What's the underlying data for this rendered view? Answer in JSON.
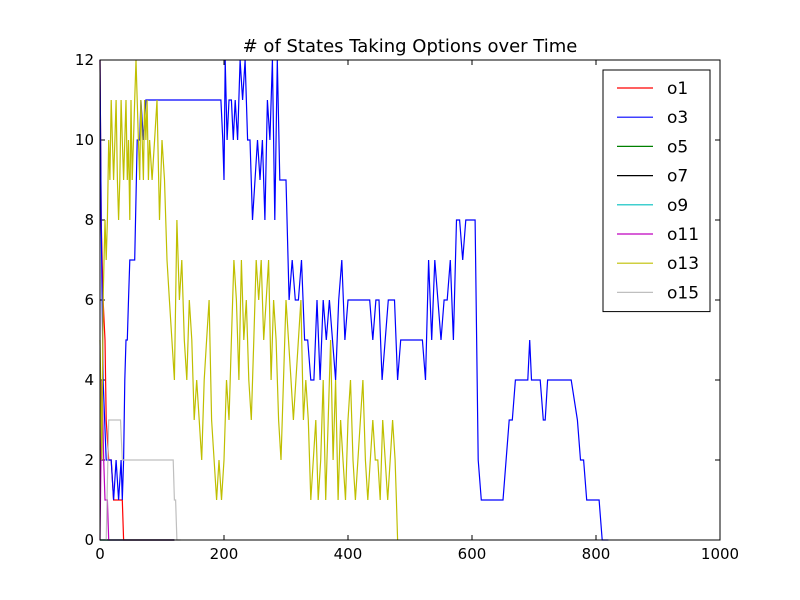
{
  "chart_data": {
    "type": "line",
    "title": "# of States Taking Options over Time",
    "xlabel": "",
    "ylabel": "",
    "xlim": [
      0,
      1000
    ],
    "ylim": [
      0,
      12
    ],
    "xticks": [
      0,
      200,
      400,
      600,
      800,
      1000
    ],
    "yticks": [
      0,
      2,
      4,
      6,
      8,
      10,
      12
    ],
    "grid": false,
    "legend_position": "top-right",
    "series": [
      {
        "name": "o1",
        "color": "#ff0000",
        "x": [
          0,
          2,
          5,
          8,
          10,
          14,
          18,
          22,
          25,
          30,
          36,
          38,
          40,
          60,
          120
        ],
        "y": [
          12,
          8,
          6,
          5,
          3,
          2,
          2,
          1,
          1,
          1,
          1,
          0,
          0,
          0,
          0
        ]
      },
      {
        "name": "o3",
        "color": "#0000ff",
        "x": [
          0,
          2,
          5,
          10,
          14,
          18,
          22,
          26,
          30,
          34,
          36,
          38,
          40,
          42,
          44,
          46,
          48,
          52,
          56,
          60,
          64,
          66,
          70,
          74,
          78,
          80,
          85,
          90,
          100,
          120,
          140,
          160,
          180,
          195,
          198,
          200,
          202,
          205,
          208,
          212,
          215,
          218,
          222,
          226,
          230,
          234,
          238,
          242,
          246,
          250,
          254,
          258,
          262,
          266,
          270,
          274,
          278,
          282,
          286,
          290,
          295,
          300,
          305,
          310,
          315,
          320,
          325,
          330,
          335,
          340,
          345,
          350,
          355,
          360,
          365,
          370,
          375,
          380,
          385,
          390,
          395,
          400,
          405,
          410,
          415,
          420,
          425,
          430,
          435,
          440,
          445,
          450,
          455,
          460,
          465,
          470,
          475,
          480,
          485,
          490,
          495,
          500,
          505,
          510,
          515,
          520,
          525,
          530,
          535,
          540,
          545,
          550,
          555,
          560,
          565,
          570,
          575,
          580,
          585,
          590,
          595,
          600,
          605,
          610,
          615,
          620,
          630,
          640,
          650,
          660,
          665,
          670,
          680,
          690,
          693,
          696,
          700,
          705,
          710,
          715,
          718,
          722,
          726,
          730,
          740,
          750,
          760,
          770,
          775,
          780,
          785,
          790,
          795,
          800,
          805,
          810,
          811,
          820
        ],
        "y": [
          12,
          8,
          4,
          2,
          2,
          2,
          1,
          2,
          1,
          2,
          1,
          2,
          4,
          5,
          5,
          6,
          7,
          7,
          7,
          10,
          10,
          11,
          10,
          11,
          11,
          11,
          11,
          11,
          11,
          11,
          11,
          11,
          11,
          11,
          10,
          9,
          12,
          10,
          11,
          11,
          10,
          11,
          10,
          12,
          11,
          12,
          10,
          10,
          8,
          9,
          10,
          9,
          10,
          8,
          11,
          10,
          12,
          8,
          12,
          9,
          9,
          9,
          6,
          7,
          6,
          6,
          7,
          5,
          5,
          4,
          4,
          6,
          4,
          6,
          5,
          6,
          5,
          4,
          6,
          7,
          5,
          6,
          6,
          6,
          6,
          6,
          6,
          6,
          6,
          5,
          6,
          6,
          4,
          5,
          6,
          6,
          6,
          4,
          5,
          5,
          5,
          5,
          5,
          5,
          5,
          5,
          4,
          7,
          5,
          7,
          6,
          5,
          6,
          6,
          7,
          5,
          8,
          8,
          7,
          8,
          8,
          8,
          8,
          2,
          1,
          1,
          1,
          1,
          1,
          3,
          3,
          4,
          4,
          4,
          5,
          4,
          4,
          4,
          4,
          3,
          3,
          4,
          4,
          4,
          4,
          4,
          4,
          3,
          2,
          2,
          1,
          1,
          1,
          1,
          1,
          0,
          0,
          0
        ]
      },
      {
        "name": "o5",
        "color": "#008000",
        "x": [
          0,
          10,
          120
        ],
        "y": [
          0,
          0,
          0
        ]
      },
      {
        "name": "o7",
        "color": "#000000",
        "x": [
          0,
          10,
          120
        ],
        "y": [
          0,
          0,
          0
        ]
      },
      {
        "name": "o9",
        "color": "#00bfbf",
        "x": [
          0,
          10,
          120
        ],
        "y": [
          0,
          0,
          0
        ]
      },
      {
        "name": "o11",
        "color": "#bf00bf",
        "x": [
          0,
          3,
          6,
          8,
          10,
          12,
          14,
          120
        ],
        "y": [
          0,
          4,
          2,
          1,
          1,
          1,
          0,
          0
        ]
      },
      {
        "name": "o13",
        "color": "#bfbf00",
        "x": [
          0,
          3,
          5,
          8,
          10,
          12,
          14,
          16,
          18,
          20,
          22,
          24,
          26,
          28,
          30,
          32,
          34,
          36,
          38,
          40,
          42,
          44,
          46,
          48,
          50,
          52,
          54,
          56,
          58,
          60,
          62,
          64,
          66,
          68,
          70,
          72,
          74,
          76,
          78,
          80,
          84,
          88,
          92,
          96,
          100,
          104,
          108,
          112,
          116,
          120,
          124,
          128,
          132,
          136,
          140,
          144,
          148,
          152,
          156,
          160,
          164,
          168,
          172,
          176,
          180,
          184,
          188,
          192,
          196,
          200,
          204,
          208,
          212,
          216,
          220,
          224,
          228,
          232,
          236,
          240,
          244,
          248,
          252,
          256,
          260,
          264,
          268,
          272,
          276,
          280,
          284,
          288,
          292,
          296,
          300,
          304,
          308,
          312,
          316,
          320,
          324,
          328,
          332,
          336,
          340,
          344,
          348,
          352,
          356,
          360,
          364,
          368,
          372,
          376,
          380,
          384,
          388,
          392,
          396,
          400,
          404,
          408,
          412,
          416,
          420,
          424,
          428,
          432,
          436,
          440,
          444,
          448,
          452,
          456,
          460,
          464,
          468,
          472,
          476,
          478,
          480
        ],
        "y": [
          5,
          2,
          6,
          8,
          7,
          8,
          10,
          9,
          11,
          10,
          9,
          10,
          11,
          9,
          8,
          9,
          11,
          10,
          9,
          10,
          11,
          9,
          10,
          8,
          11,
          9,
          10,
          11,
          12,
          11,
          10,
          9,
          11,
          10,
          9,
          11,
          10,
          11,
          9,
          10,
          9,
          10,
          11,
          8,
          10,
          9,
          7,
          6,
          5,
          4,
          8,
          6,
          7,
          5,
          4,
          6,
          5,
          3,
          4,
          3,
          2,
          4,
          5,
          6,
          3,
          2,
          1,
          2,
          1,
          2,
          4,
          3,
          5,
          7,
          6,
          4,
          7,
          5,
          6,
          4,
          3,
          5,
          7,
          6,
          7,
          5,
          6,
          7,
          4,
          6,
          5,
          3,
          2,
          4,
          6,
          5,
          4,
          3,
          4,
          5,
          6,
          3,
          4,
          3,
          1,
          2,
          3,
          1,
          2,
          4,
          1,
          3,
          5,
          2,
          4,
          1,
          3,
          2,
          1,
          3,
          4,
          2,
          1,
          2,
          3,
          4,
          2,
          1,
          2,
          3,
          2,
          2,
          1,
          3,
          2,
          1,
          2,
          3,
          2,
          1,
          0
        ]
      },
      {
        "name": "o15",
        "color": "#bfbfbf",
        "x": [
          0,
          10,
          14,
          20,
          30,
          33,
          36,
          40,
          60,
          80,
          100,
          110,
          118,
          120,
          122,
          124,
          130
        ],
        "y": [
          0,
          0,
          3,
          3,
          3,
          3,
          2,
          2,
          2,
          2,
          2,
          2,
          2,
          1,
          1,
          0,
          0
        ]
      }
    ]
  }
}
